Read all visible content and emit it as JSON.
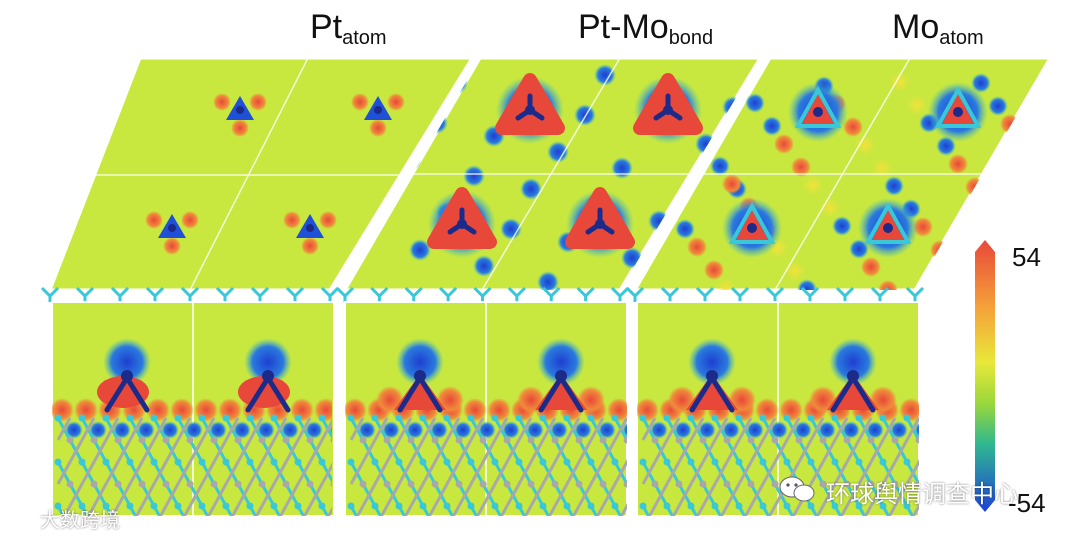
{
  "panels": [
    {
      "title_main": "Pt",
      "title_sub": "atom"
    },
    {
      "title_main": "Pt-Mo",
      "title_sub": "bond"
    },
    {
      "title_main": "Mo",
      "title_sub": "atom"
    }
  ],
  "colorbar": {
    "max_label": "54",
    "min_label": "-54"
  },
  "colors": {
    "background": "#c8e840",
    "positive": "#e8483a",
    "negative": "#1e50d8",
    "neutral": "#c8e840",
    "atom_cyan": "#38c8d8",
    "atom_navy": "#1c2a8a",
    "atom_grey": "#a8a8a8"
  },
  "watermarks": {
    "left": "大数跨境",
    "right": "环球舆情调查中心"
  },
  "icons": [
    "wechat-icon",
    "logo-icon"
  ]
}
